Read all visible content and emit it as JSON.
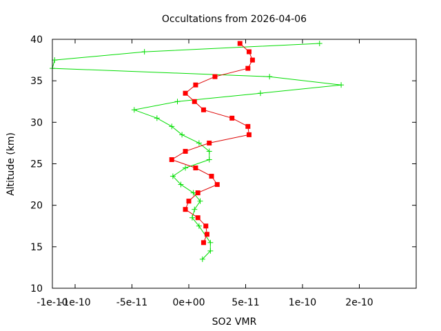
{
  "chart_data": {
    "type": "line",
    "title": "Occultations from 2026-04-06",
    "xlabel": "SO2 VMR",
    "ylabel": "Altitude (km)",
    "xlim": [
      -1.2e-10,
      2e-10
    ],
    "ylim": [
      10,
      40
    ],
    "grid": false,
    "x_tick_labels": [
      "-1e-10",
      "-1e-10",
      "-5e-11",
      "0e+00",
      "5e-11",
      "1e-10",
      "2e-10"
    ],
    "x_tick_values": [
      -1.2e-10,
      -1e-10,
      -5e-11,
      0.0,
      5e-11,
      1e-10,
      1.5e-10
    ],
    "y_tick_labels": [
      "10",
      "15",
      "20",
      "25",
      "30",
      "35",
      "40"
    ],
    "y_tick_values": [
      10,
      15,
      20,
      25,
      30,
      35,
      40
    ],
    "series": [
      {
        "color": "#00dd00",
        "marker": "plus",
        "x": [
          1.15e-10,
          -3.9e-11,
          -1.18e-10,
          -1.2e-10,
          7.1e-11,
          1.34e-10,
          6.3e-11,
          -1e-11,
          -4.8e-11,
          -2.8e-11,
          -1.5e-11,
          -6e-12,
          9e-12,
          1.8e-11,
          1.8e-11,
          -3e-12,
          -1.4e-11,
          -7e-12,
          4e-12,
          1e-11,
          5e-12,
          3e-12,
          9e-12,
          1.9e-11,
          1.9e-11,
          1.2e-11
        ],
        "y": [
          39.5,
          38.5,
          37.5,
          36.5,
          35.5,
          34.5,
          33.5,
          32.5,
          31.5,
          30.5,
          29.5,
          28.5,
          27.5,
          26.5,
          25.5,
          24.5,
          23.5,
          22.5,
          21.5,
          20.5,
          19.5,
          18.5,
          17.5,
          15.5,
          14.5,
          13.5
        ]
      },
      {
        "color": "#ff0000",
        "marker": "square",
        "x": [
          4.5e-11,
          5.3e-11,
          5.6e-11,
          5.2e-11,
          2.3e-11,
          6e-12,
          -3e-12,
          5e-12,
          1.3e-11,
          3.8e-11,
          5.2e-11,
          5.3e-11,
          1.8e-11,
          -3e-12,
          -1.5e-11,
          6e-12,
          2e-11,
          2.5e-11,
          8e-12,
          0.0,
          -3e-12,
          8e-12,
          1.5e-11,
          1.6e-11,
          1.3e-11
        ],
        "y": [
          39.5,
          38.5,
          37.5,
          36.5,
          35.5,
          34.5,
          33.5,
          32.5,
          31.5,
          30.5,
          29.5,
          28.5,
          27.5,
          26.5,
          25.5,
          24.5,
          23.5,
          22.5,
          21.5,
          20.5,
          19.5,
          18.5,
          17.5,
          16.5,
          15.5
        ]
      }
    ]
  }
}
